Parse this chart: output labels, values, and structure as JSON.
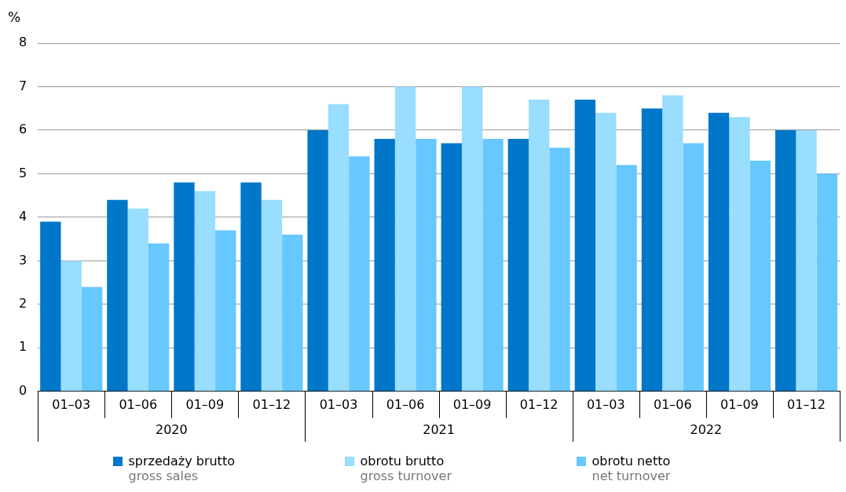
{
  "chart_data": {
    "type": "bar",
    "ylabel": "%",
    "categories": [
      "01–03",
      "01–06",
      "01–09",
      "01–12",
      "01–03",
      "01–06",
      "01–09",
      "01–12",
      "01–03",
      "01–06",
      "01–09",
      "01–12"
    ],
    "series": [
      {
        "name": "sprzedaży brutto\ngross sales",
        "color": "#0077c8",
        "values": [
          3.9,
          4.4,
          4.8,
          4.8,
          6.0,
          5.8,
          5.7,
          5.8,
          6.7,
          6.5,
          6.4,
          6.0
        ]
      },
      {
        "name": "obrotu brutto\ngross turnover",
        "color": "#99ddff",
        "values": [
          3.0,
          4.2,
          4.6,
          4.4,
          6.6,
          7.0,
          7.0,
          6.7,
          6.4,
          6.8,
          6.3,
          6.0
        ]
      },
      {
        "name": "obrotu netto\nnet turnover",
        "color": "#66c8ff",
        "values": [
          2.4,
          3.4,
          3.7,
          3.6,
          5.4,
          5.8,
          5.8,
          5.6,
          5.2,
          5.7,
          5.3,
          5.0
        ]
      }
    ],
    "annotations": [
      "2020",
      "2021",
      "2022"
    ],
    "ylim": [
      0,
      8
    ],
    "yticks": [
      0,
      1,
      2,
      3,
      4,
      5,
      6,
      7,
      8
    ],
    "grid": "y",
    "legend": "bottom"
  }
}
